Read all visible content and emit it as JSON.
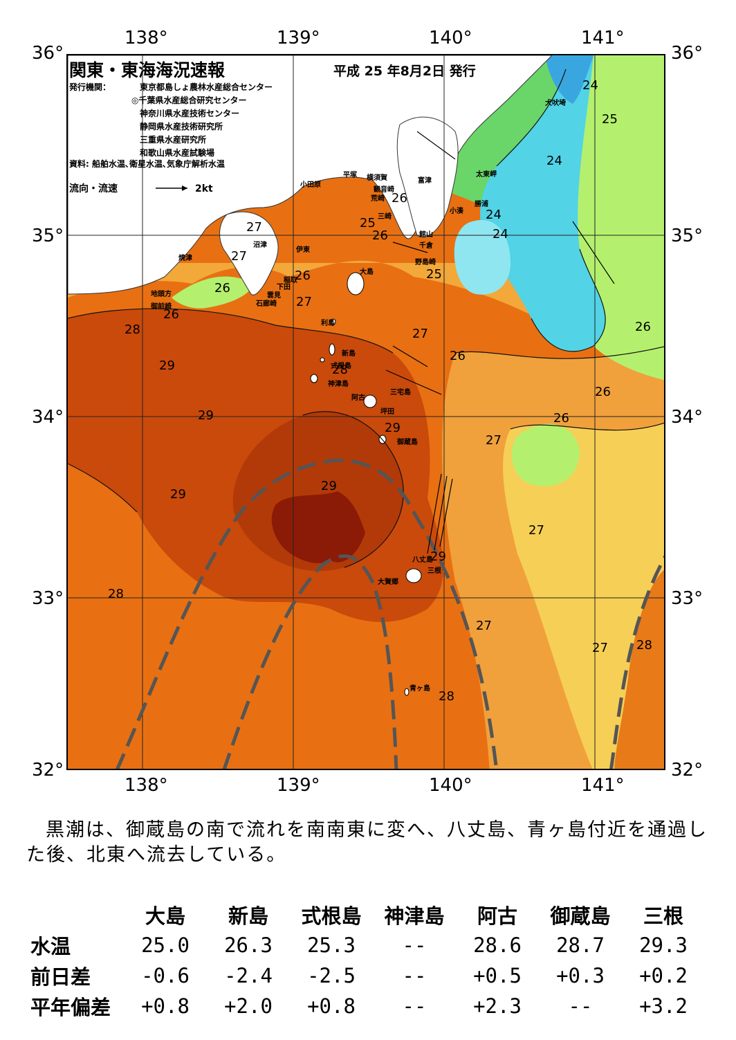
{
  "title": "関東・東海海況速報",
  "issued": "平成 25 年8月2日 発行",
  "agency_label": "発行機関：",
  "agencies": [
    "東京都島しょ農林水産総合センター",
    "◎千葉県水産総合研究センター",
    "神奈川県水産技術センター",
    "静岡県水産技術研究所",
    "三重県水産研究所",
    "和歌山県水産試験場"
  ],
  "sources": "資料: 船舶水温､衛星水温､気象庁解析水温",
  "legend_flow": "流向・流速",
  "legend_speed": "2kt",
  "lon_ticks": [
    "138°",
    "139°",
    "140°",
    "141°"
  ],
  "lat_ticks": [
    "36°",
    "35°",
    "34°",
    "33°",
    "32°"
  ],
  "places": [
    "犬吠埼",
    "太東岬",
    "勝浦",
    "小湊",
    "館山",
    "千倉",
    "野島崎",
    "富津",
    "横須賀",
    "平塚",
    "観音崎",
    "荒崎",
    "三崎",
    "小田原",
    "沼津",
    "伊東",
    "稲取",
    "下田",
    "雲見",
    "石廊崎",
    "焼津",
    "地頭方",
    "御前崎",
    "大島",
    "利島",
    "新島",
    "式根島",
    "神津島",
    "三宅島",
    "阿古",
    "坪田",
    "御蔵島",
    "八丈島",
    "三根",
    "大賀郷",
    "青ヶ島"
  ],
  "isotherm_labels": [
    "24",
    "25",
    "24",
    "24",
    "24",
    "26",
    "25",
    "26",
    "27",
    "27",
    "26",
    "26",
    "26",
    "27",
    "28",
    "29",
    "29",
    "28",
    "27",
    "26",
    "26",
    "26",
    "29",
    "27",
    "29",
    "29",
    "29",
    "27",
    "28",
    "27",
    "27",
    "28",
    "28",
    "25"
  ],
  "summary": "黒潮は、御蔵島の南で流れを南南東に変へ、八丈島、青ヶ島付近を通過した後、北東へ流去している。",
  "table": {
    "columns": [
      "大島",
      "新島",
      "式根島",
      "神津島",
      "阿古",
      "御蔵島",
      "三根"
    ],
    "rows": [
      {
        "label": "水温",
        "values": [
          "25.0",
          "26.3",
          "25.3",
          "--",
          "28.6",
          "28.7",
          "29.3"
        ]
      },
      {
        "label": "前日差",
        "values": [
          "-0.6",
          "-2.4",
          "-2.5",
          "--",
          "+0.5",
          "+0.3",
          "+0.2"
        ]
      },
      {
        "label": "平年偏差",
        "values": [
          "+0.8",
          "+2.0",
          "+0.8",
          "--",
          "+2.3",
          "--",
          "+3.2"
        ]
      }
    ]
  },
  "colors": {
    "deep_red": "#8b1a06",
    "dark_orange": "#b83a0a",
    "orange": "#d9560d",
    "light_orange": "#ee8a1c",
    "yellow": "#f3c94a",
    "light_green": "#b4f06e",
    "green": "#6ad66a",
    "cyan": "#4fd2e8",
    "light_blue": "#8ee5f0",
    "kuroshio_path": "#555555"
  }
}
